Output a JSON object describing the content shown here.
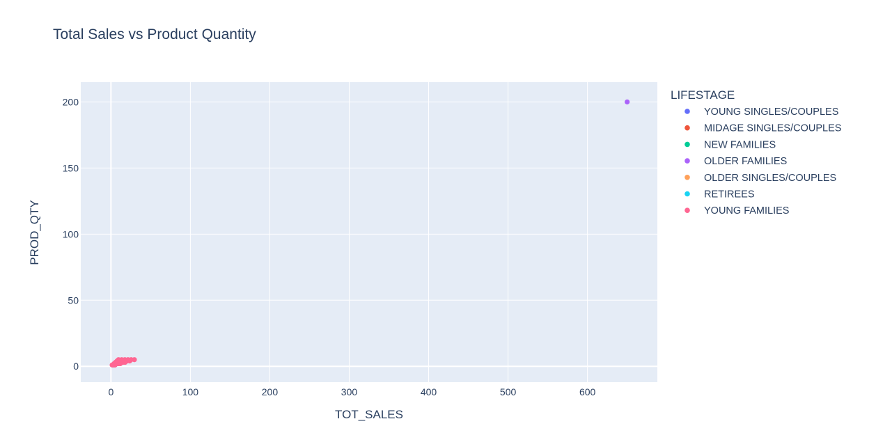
{
  "chart_data": {
    "type": "scatter",
    "title": "Total Sales vs Product Quantity",
    "xlabel": "TOT_SALES",
    "ylabel": "PROD_QTY",
    "xlim": [
      -38,
      688
    ],
    "ylim": [
      -12,
      215
    ],
    "x_ticks": [
      0,
      100,
      200,
      300,
      400,
      500,
      600
    ],
    "y_ticks": [
      0,
      50,
      100,
      150,
      200
    ],
    "grid": true,
    "plot_background": "#e5ecf6",
    "grid_color": "#ffffff",
    "legend_position": "right",
    "legend_title": "LIFESTAGE",
    "series": [
      {
        "name": "YOUNG SINGLES/COUPLES",
        "color": "#636efa",
        "points": [
          [
            2.1,
            1
          ],
          [
            3.9,
            1
          ],
          [
            5.4,
            2
          ],
          [
            7.6,
            2
          ],
          [
            9.2,
            3
          ]
        ]
      },
      {
        "name": "MIDAGE SINGLES/COUPLES",
        "color": "#ef553b",
        "points": [
          [
            2.9,
            1
          ],
          [
            4.6,
            1
          ],
          [
            6.1,
            2
          ],
          [
            8.8,
            2
          ],
          [
            10.5,
            3
          ]
        ]
      },
      {
        "name": "NEW FAMILIES",
        "color": "#00cc96",
        "points": [
          [
            3.3,
            1
          ],
          [
            5.7,
            2
          ],
          [
            7.4,
            2
          ],
          [
            9.9,
            3
          ]
        ]
      },
      {
        "name": "OLDER FAMILIES",
        "color": "#ab63fa",
        "points": [
          [
            650,
            200
          ],
          [
            4.2,
            1
          ],
          [
            7.8,
            2
          ],
          [
            11.4,
            3
          ]
        ]
      },
      {
        "name": "OLDER SINGLES/COUPLES",
        "color": "#ffa15a",
        "points": [
          [
            3.6,
            1
          ],
          [
            6.6,
            2
          ],
          [
            8.4,
            2
          ],
          [
            12.2,
            3
          ]
        ]
      },
      {
        "name": "RETIREES",
        "color": "#19d3f3",
        "points": [
          [
            2.5,
            1
          ],
          [
            5.1,
            1
          ],
          [
            7.2,
            2
          ],
          [
            10.1,
            3
          ]
        ]
      },
      {
        "name": "YOUNG FAMILIES",
        "color": "#ff6692",
        "points": [
          [
            1.5,
            1
          ],
          [
            2.2,
            1
          ],
          [
            3.0,
            1
          ],
          [
            3.7,
            1
          ],
          [
            4.4,
            1
          ],
          [
            5.2,
            1
          ],
          [
            3.8,
            2
          ],
          [
            5.4,
            2
          ],
          [
            7.0,
            2
          ],
          [
            8.6,
            2
          ],
          [
            10.2,
            2
          ],
          [
            11.8,
            2
          ],
          [
            5.7,
            3
          ],
          [
            8.1,
            3
          ],
          [
            10.5,
            3
          ],
          [
            12.9,
            3
          ],
          [
            15.3,
            3
          ],
          [
            17.7,
            3
          ],
          [
            7.6,
            4
          ],
          [
            10.8,
            4
          ],
          [
            14.0,
            4
          ],
          [
            17.2,
            4
          ],
          [
            20.4,
            4
          ],
          [
            23.6,
            4
          ],
          [
            9.5,
            5
          ],
          [
            13.5,
            5
          ],
          [
            17.5,
            5
          ],
          [
            21.5,
            5
          ],
          [
            25.5,
            5
          ],
          [
            29.5,
            5
          ]
        ]
      }
    ]
  }
}
